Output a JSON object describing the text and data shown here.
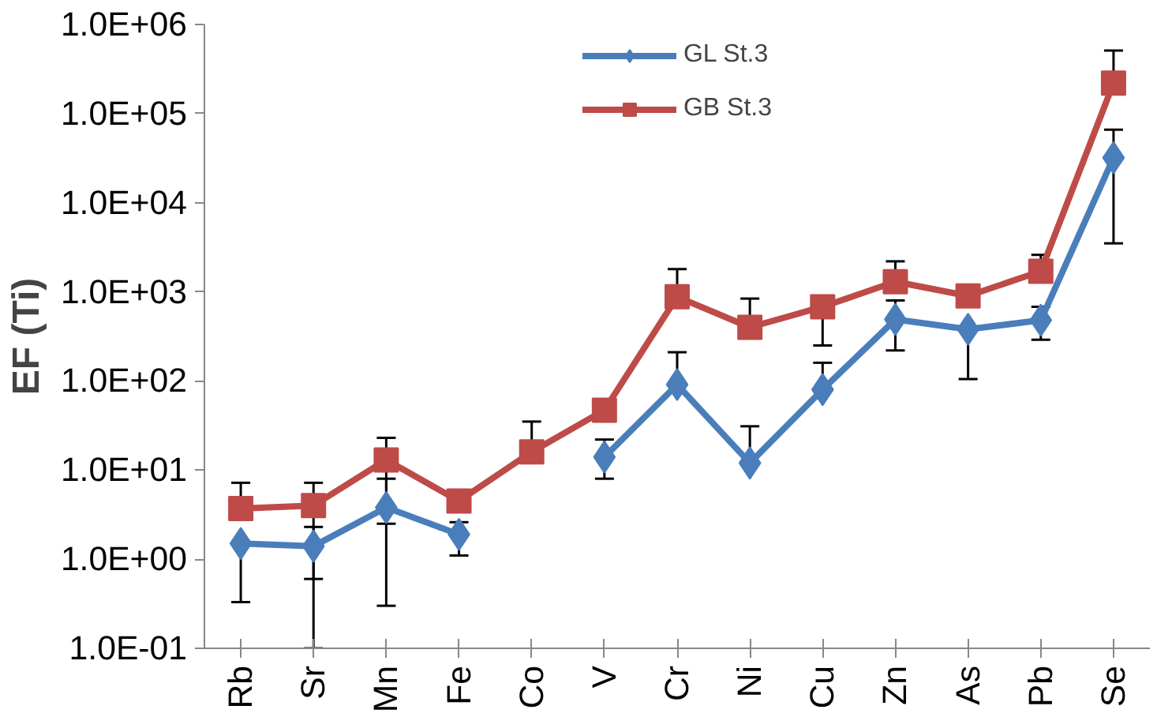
{
  "chart_data": {
    "type": "line",
    "ylabel": "EF (Ti)",
    "log": true,
    "grid": false,
    "legend": "top",
    "line_style": "solid",
    "categories": [
      "Rb",
      "Sr",
      "Mn",
      "Fe",
      "Co",
      "V",
      "Cr",
      "Ni",
      "Cu",
      "Zn",
      "As",
      "Pb",
      "Se"
    ],
    "ylim": [
      0.1,
      1000000
    ],
    "yticks": [
      {
        "value": 0.1,
        "label": "1.0E-01"
      },
      {
        "value": 1,
        "label": "1.0E+00"
      },
      {
        "value": 10,
        "label": "1.0E+01"
      },
      {
        "value": 100,
        "label": "1.0E+02"
      },
      {
        "value": 1000,
        "label": "1.0E+03"
      },
      {
        "value": 10000,
        "label": "1.0E+04"
      },
      {
        "value": 100000,
        "label": "1.0E+05"
      },
      {
        "value": 1000000,
        "label": "1.0E+06"
      }
    ],
    "series": [
      {
        "name": "GL St.3",
        "color": "#4a7ebb",
        "marker": "diamond",
        "values": [
          1.5,
          1.4,
          3.8,
          1.9,
          null,
          14,
          91,
          12,
          80,
          490,
          380,
          480,
          32000
        ],
        "errors": [
          [
            0.33,
            1.5
          ],
          [
            0.1,
            2.3
          ],
          [
            0.3,
            8
          ],
          [
            1.1,
            2.6
          ],
          null,
          [
            8,
            22
          ],
          [
            91,
            210
          ],
          [
            12,
            31
          ],
          [
            80,
            160
          ],
          [
            220,
            800
          ],
          [
            105,
            380
          ],
          [
            290,
            680
          ],
          [
            3500,
            66000
          ]
        ]
      },
      {
        "name": "GB St.3",
        "color": "#be4b48",
        "marker": "square",
        "values": [
          3.7,
          4.0,
          13,
          4.5,
          16,
          47,
          880,
          400,
          680,
          1300,
          900,
          1700,
          220000
        ],
        "errors": [
          [
            3.7,
            7.2
          ],
          [
            0.6,
            7.2
          ],
          [
            2.5,
            23
          ],
          null,
          [
            16,
            35
          ],
          [
            47,
            47
          ],
          [
            880,
            1800
          ],
          [
            400,
            840
          ],
          [
            250,
            680
          ],
          [
            1300,
            2200
          ],
          null,
          [
            1700,
            2600
          ],
          [
            220000,
            510000
          ]
        ]
      }
    ]
  }
}
